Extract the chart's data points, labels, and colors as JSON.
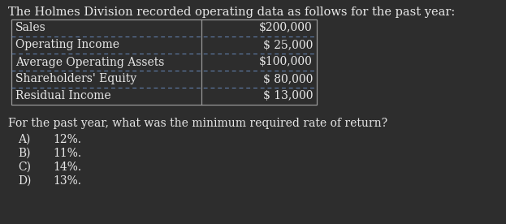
{
  "bg_color": "#2d2d2d",
  "text_color": "#e8e8e8",
  "title": "The Holmes Division recorded operating data as follows for the past year:",
  "table_rows": [
    [
      "Sales",
      "$200,000"
    ],
    [
      "Operating Income",
      "$ 25,000"
    ],
    [
      "Average Operating Assets",
      "$100,000"
    ],
    [
      "Shareholders' Equity",
      "$ 80,000"
    ],
    [
      "Residual Income",
      "$ 13,000"
    ]
  ],
  "question": "For the past year, what was the minimum required rate of return?",
  "choices": [
    [
      "A)",
      "12%."
    ],
    [
      "B)",
      "11%."
    ],
    [
      "C)",
      "14%."
    ],
    [
      "D)",
      "13%."
    ]
  ],
  "font_size_title": 10.5,
  "font_size_table": 10.0,
  "font_size_question": 10.0,
  "font_size_choices": 10.0,
  "border_color": "#999999",
  "divider_color": "#6688bb"
}
